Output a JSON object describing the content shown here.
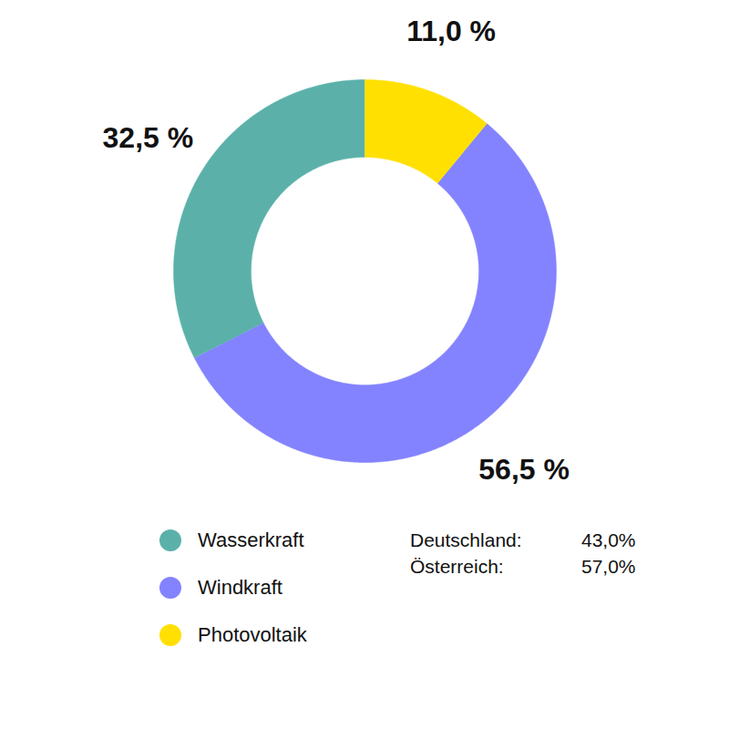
{
  "chart_data": {
    "type": "donut",
    "categories": [
      "Wasserkraft",
      "Windkraft",
      "Photovoltaik"
    ],
    "values": [
      32.5,
      56.5,
      11.0
    ],
    "value_labels": [
      "32,5 %",
      "56,5 %",
      "11,0 %"
    ],
    "colors": [
      "#5bb1a9",
      "#8383ff",
      "#ffe000"
    ],
    "data_labels": true,
    "legend": "bottom-left",
    "annotations": [
      {
        "label": "Deutschland:",
        "value": 43.0,
        "value_label": "43,0%"
      },
      {
        "label": "Österreich:",
        "value": 57.0,
        "value_label": "57,0%"
      }
    ]
  }
}
